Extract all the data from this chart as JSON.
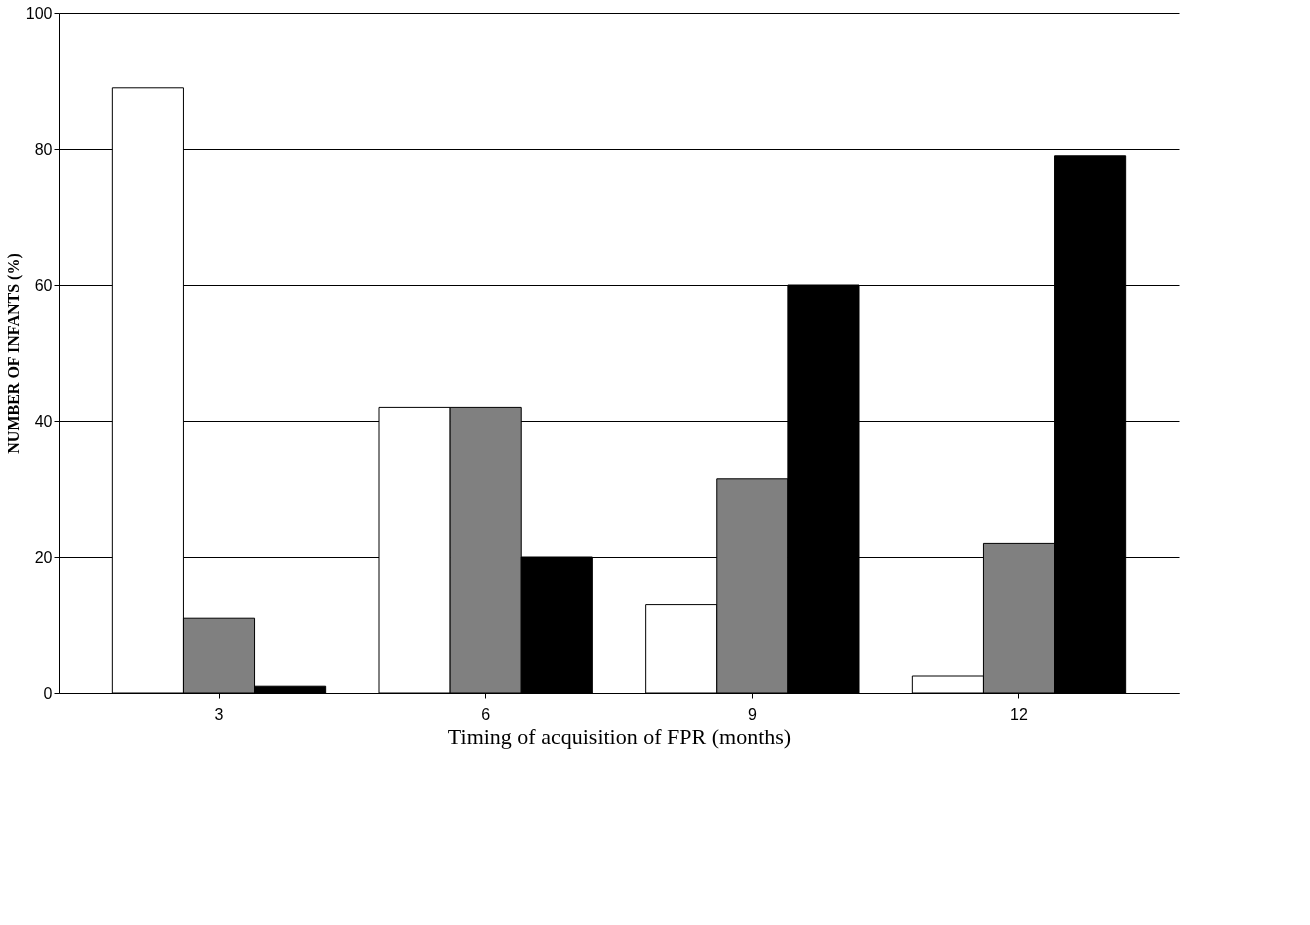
{
  "chart_data": {
    "type": "bar",
    "xlabel": "Timing of acquisition of FPR (months)",
    "ylabel": "NUMBER OF INFANTS (%)",
    "categories": [
      "3",
      "6",
      "9",
      "12"
    ],
    "series": [
      {
        "color": "#ffffff",
        "values": [
          89,
          42,
          13,
          2.5
        ]
      },
      {
        "color": "#808080",
        "values": [
          11,
          42,
          31.5,
          22
        ]
      },
      {
        "color": "#000000",
        "values": [
          1,
          20,
          60,
          79
        ]
      }
    ],
    "ylim": [
      0,
      100
    ],
    "yticks": [
      0,
      20,
      40,
      60,
      80,
      100
    ],
    "grid": "y",
    "legend": false
  }
}
